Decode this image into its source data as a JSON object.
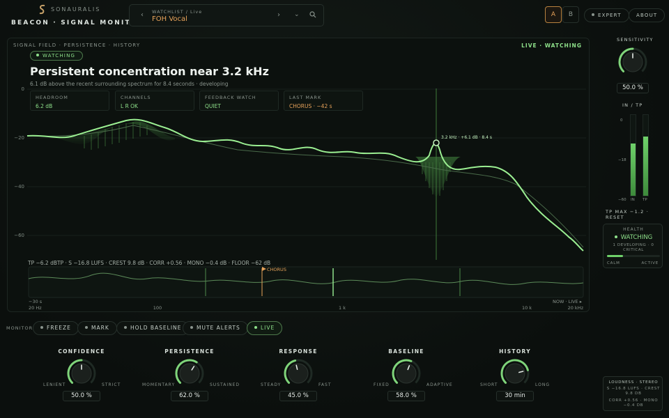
{
  "brand": {
    "name": "SONAURALIS",
    "app_title": "BEACON · SIGNAL MONITOR"
  },
  "watchlist": {
    "label": "WATCHLIST / Live",
    "value": "FOH Vocal",
    "prev": "‹",
    "next": "›"
  },
  "compare": {
    "a": "A",
    "b": "B"
  },
  "header": {
    "expert": "EXPERT",
    "about": "ABOUT"
  },
  "panel": {
    "crumbs": "SIGNAL FIELD · PERSISTENCE · HISTORY",
    "live": "LIVE · WATCHING",
    "badge": "WATCHING",
    "headline": "Persistent concentration near 3.2 kHz",
    "subline": "6.1 dB above the recent surrounding spectrum for 8.4 seconds · developing"
  },
  "stats": [
    {
      "label": "HEADROOM",
      "value": "6.2 dB"
    },
    {
      "label": "CHANNELS",
      "value": "L R OK"
    },
    {
      "label": "FEEDBACK WATCH",
      "value": "QUIET"
    },
    {
      "label": "LAST MARK",
      "value": "CHORUS · −42 s"
    }
  ],
  "spectrum": {
    "y_ticks": [
      "0",
      "−20",
      "−40",
      "−60"
    ],
    "marker_label": "3.2 kHz · +6.1 dB · 8.4 s"
  },
  "meters_line": "TP −6.2 dBTP · S −16.8 LUFS · CREST 9.8 dB · CORR +0.56 · MONO −0.4 dB · FLOOR −62 dB",
  "history": {
    "start": "−30 s",
    "end": "NOW · LIVE ▸",
    "mark": "CHORUS"
  },
  "freq_ticks": {
    "f20": "20 Hz",
    "f100": "100",
    "f1k": "1 k",
    "f10k": "10 k",
    "f20k": "20 kHz"
  },
  "monitor": {
    "label": "MONITOR",
    "buttons": [
      "FREEZE",
      "MARK",
      "HOLD BASELINE",
      "MUTE ALERTS",
      "LIVE"
    ]
  },
  "knobs": [
    {
      "title": "CONFIDENCE",
      "left": "LENIENT",
      "right": "STRICT",
      "value": "50.0 %",
      "level": 0.5
    },
    {
      "title": "PERSISTENCE",
      "left": "MOMENTARY",
      "right": "SUSTAINED",
      "value": "62.0 %",
      "level": 0.62
    },
    {
      "title": "RESPONSE",
      "left": "STEADY",
      "right": "FAST",
      "value": "45.0 %",
      "level": 0.45
    },
    {
      "title": "BASELINE",
      "left": "FIXED",
      "right": "ADAPTIVE",
      "value": "58.0 %",
      "level": 0.58
    },
    {
      "title": "HISTORY",
      "left": "SHORT",
      "right": "LONG",
      "value": "30 min",
      "level": 0.78
    }
  ],
  "sensitivity": {
    "label": "SENSITIVITY",
    "value": "50.0 %",
    "level": 0.5
  },
  "inTp": {
    "label": "IN / TP",
    "ticks": [
      "0",
      "−18",
      "−60"
    ],
    "in_label": "IN",
    "tp_label": "TP",
    "in_level": 0.65,
    "tp_level": 0.73,
    "footer": "TP MAX −1.2 · RESET"
  },
  "health": {
    "title": "HEALTH",
    "status": "WATCHING",
    "detail1": "1 DEVELOPING · 0",
    "detail2": "CRITICAL",
    "calm": "CALM",
    "active": "ACTIVE",
    "level": 0.3
  },
  "loudness": {
    "title": "LOUDNESS · STEREO",
    "l1": "S −16.8 LUFS · CREST",
    "l2": "9.8 DB",
    "l3": "CORR +0.56 · MONO",
    "l4": "−0.4 DB"
  },
  "colors": {
    "accent": "#8ee08a",
    "amber": "#e8a35a"
  }
}
